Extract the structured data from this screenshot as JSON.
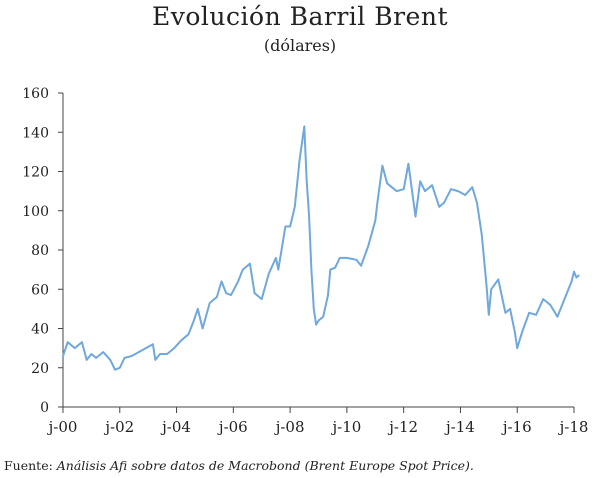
{
  "chart_data": {
    "type": "line",
    "title": "Evolución Barril Brent",
    "subtitle": "(dólares)",
    "xlabel": "",
    "ylabel": "",
    "ylim": [
      0,
      160
    ],
    "yticks": [
      0,
      20,
      40,
      60,
      80,
      100,
      120,
      140,
      160
    ],
    "xlim": [
      "2000-01",
      "2018-03"
    ],
    "xtick_labels": [
      "j-00",
      "j-02",
      "j-04",
      "j-06",
      "j-08",
      "j-10",
      "j-12",
      "j-14",
      "j-16",
      "j-18"
    ],
    "xtick_values": [
      "2000-01",
      "2002-01",
      "2004-01",
      "2006-01",
      "2008-01",
      "2010-01",
      "2012-01",
      "2014-01",
      "2016-01",
      "2018-01"
    ],
    "grid": false,
    "line_color": "#6fa8dc",
    "series": [
      {
        "name": "",
        "x": [
          "2000-01",
          "2000-03",
          "2000-06",
          "2000-09",
          "2000-11",
          "2001-01",
          "2001-03",
          "2001-06",
          "2001-09",
          "2001-11",
          "2002-01",
          "2002-03",
          "2002-06",
          "2002-09",
          "2002-12",
          "2003-03",
          "2003-04",
          "2003-06",
          "2003-09",
          "2003-12",
          "2004-03",
          "2004-06",
          "2004-08",
          "2004-10",
          "2004-12",
          "2005-03",
          "2005-06",
          "2005-08",
          "2005-10",
          "2005-12",
          "2006-03",
          "2006-05",
          "2006-08",
          "2006-10",
          "2007-01",
          "2007-04",
          "2007-07",
          "2007-08",
          "2007-11",
          "2008-01",
          "2008-03",
          "2008-05",
          "2008-07",
          "2008-08",
          "2008-09",
          "2008-10",
          "2008-11",
          "2008-12",
          "2009-01",
          "2009-03",
          "2009-05",
          "2009-06",
          "2009-08",
          "2009-10",
          "2010-01",
          "2010-05",
          "2010-07",
          "2010-10",
          "2011-01",
          "2011-02",
          "2011-04",
          "2011-06",
          "2011-08",
          "2011-10",
          "2012-01",
          "2012-03",
          "2012-06",
          "2012-08",
          "2012-10",
          "2013-01",
          "2013-04",
          "2013-06",
          "2013-09",
          "2013-12",
          "2014-03",
          "2014-06",
          "2014-08",
          "2014-10",
          "2014-12",
          "2015-01",
          "2015-02",
          "2015-05",
          "2015-08",
          "2015-10",
          "2015-12",
          "2016-01",
          "2016-03",
          "2016-06",
          "2016-09",
          "2016-12",
          "2017-03",
          "2017-06",
          "2017-09",
          "2017-12",
          "2018-01",
          "2018-02",
          "2018-03"
        ],
        "values": [
          26,
          33,
          30,
          33,
          24,
          27,
          25,
          28,
          24,
          19,
          20,
          25,
          26,
          28,
          30,
          32,
          24,
          27,
          27,
          30,
          34,
          37,
          43,
          50,
          40,
          53,
          56,
          64,
          58,
          57,
          64,
          70,
          73,
          58,
          55,
          68,
          76,
          70,
          92,
          92,
          102,
          126,
          143,
          115,
          98,
          70,
          50,
          42,
          44,
          46,
          57,
          70,
          71,
          76,
          76,
          75,
          72,
          82,
          95,
          105,
          123,
          114,
          112,
          110,
          111,
          124,
          97,
          115,
          110,
          113,
          102,
          104,
          111,
          110,
          108,
          112,
          104,
          88,
          62,
          47,
          60,
          65,
          48,
          50,
          38,
          30,
          38,
          48,
          47,
          55,
          52,
          46,
          55,
          64,
          69,
          66,
          67
        ]
      }
    ],
    "source_prefix": "Fuente: ",
    "source_text": "Análisis Afi sobre datos de Macrobond (Brent Europe Spot Price)."
  }
}
